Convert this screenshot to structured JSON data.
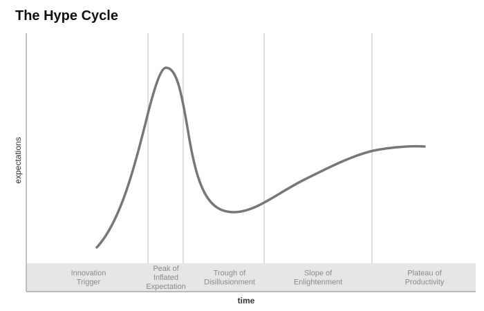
{
  "title": "The Hype Cycle",
  "y_axis_label": "expectations",
  "x_axis_label": "time",
  "phases": [
    [
      "Innovation",
      "Trigger"
    ],
    [
      "Peak of",
      "Inflated",
      "Expectation"
    ],
    [
      "Trough of",
      "Disillusionment"
    ],
    [
      "Slope of",
      "Enlightenment"
    ],
    [
      "Plateau of",
      "Productivity"
    ]
  ]
}
